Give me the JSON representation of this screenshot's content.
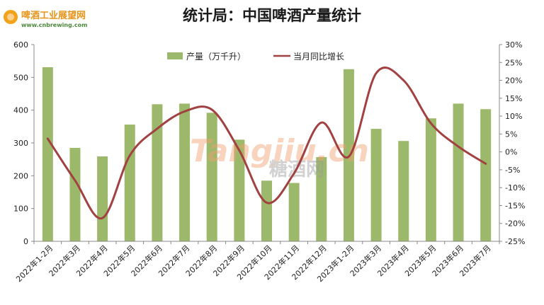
{
  "header": {
    "title": "统计局：中国啤酒产量统计",
    "logo_text": "啤酒工业展望网",
    "logo_url_text": "www.cnbrewing.com"
  },
  "watermark": {
    "latin": "Tangjiu.cn",
    "chinese": "糖酒网"
  },
  "colors": {
    "bar": "#9cb86a",
    "line": "#a14141",
    "axis": "#888888"
  },
  "chart_data": {
    "type": "bar",
    "categories": [
      "2022年1-2月",
      "2022年3月",
      "2022年4月",
      "2022年5月",
      "2022年6月",
      "2022年7月",
      "2022年8月",
      "2022年9月",
      "2022年10月",
      "2022年11月",
      "2022年12月",
      "2023年1-2月",
      "2023年3月",
      "2023年4月",
      "2023年5月",
      "2023年6月",
      "2023年7月"
    ],
    "series": [
      {
        "name": "产量（万千升）",
        "type": "bar",
        "axis": "left",
        "values": [
          531,
          285,
          259,
          356,
          418,
          420,
          392,
          310,
          185,
          178,
          257,
          525,
          343,
          306,
          375,
          420,
          403
        ]
      },
      {
        "name": "当月同比增长",
        "type": "line",
        "axis": "right",
        "values": [
          3.7,
          -8.0,
          -18.5,
          -1.0,
          6.5,
          11.3,
          11.8,
          0.4,
          -14.2,
          -6.0,
          8.2,
          -1.3,
          22.0,
          20.0,
          8.0,
          1.5,
          -3.3
        ]
      }
    ],
    "y_left": {
      "ticks": [
        0,
        100,
        200,
        300,
        400,
        500,
        600
      ],
      "ylim": [
        0,
        600
      ]
    },
    "y_right": {
      "ticks": [
        "30%",
        "25%",
        "20%",
        "15%",
        "10%",
        "5%",
        "0%",
        "-5%",
        "-10%",
        "-15%",
        "-20%",
        "-25%"
      ],
      "ylim": [
        -25,
        30
      ]
    },
    "legend": {
      "placement": "top-center"
    },
    "grid": false
  }
}
